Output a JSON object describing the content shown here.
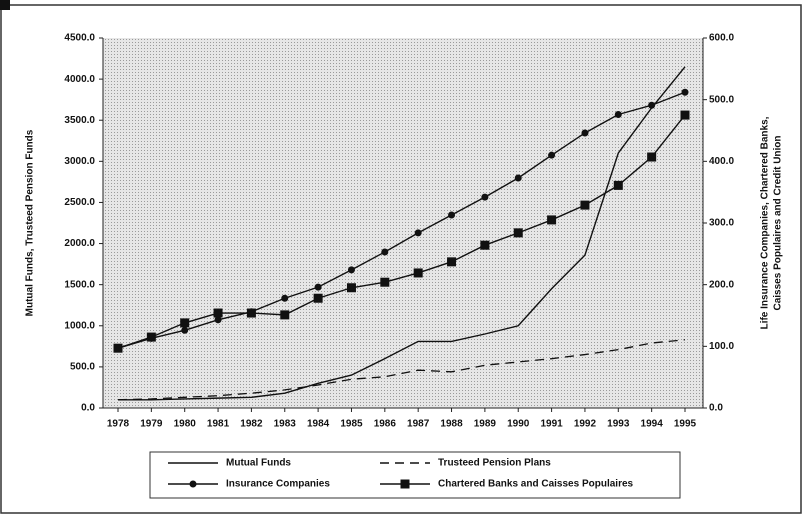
{
  "chart_data": {
    "type": "line",
    "y_axis_label": "Mutual Funds, Trusteed Pension Funds",
    "y2_axis_label": [
      "Life Insurance Companies, Chartered Banks,",
      "Caisses Populaires and Credit Union"
    ],
    "categories": [
      "1978",
      "1979",
      "1980",
      "1981",
      "1982",
      "1983",
      "1984",
      "1985",
      "1986",
      "1987",
      "1988",
      "1989",
      "1990",
      "1991",
      "1992",
      "1993",
      "1994",
      "1995"
    ],
    "ylim": [
      0,
      4500
    ],
    "yticks": [
      {
        "value": 0,
        "label": "0.0"
      },
      {
        "value": 500,
        "label": "500.0"
      },
      {
        "value": 1000,
        "label": "1000.0"
      },
      {
        "value": 1500,
        "label": "1500.0"
      },
      {
        "value": 2000,
        "label": "2000.0"
      },
      {
        "value": 2500,
        "label": "2500.0"
      },
      {
        "value": 3000,
        "label": "3000.0"
      },
      {
        "value": 3500,
        "label": "3500.0"
      },
      {
        "value": 4000,
        "label": "4000.0"
      },
      {
        "value": 4500,
        "label": "4500.0"
      }
    ],
    "y2lim": [
      0,
      600
    ],
    "y2ticks": [
      {
        "value": 0,
        "label": "0.0"
      },
      {
        "value": 100,
        "label": "100.0"
      },
      {
        "value": 200,
        "label": "200.0"
      },
      {
        "value": 300,
        "label": "300.0"
      },
      {
        "value": 400,
        "label": "400.0"
      },
      {
        "value": 500,
        "label": "500.0"
      },
      {
        "value": 600,
        "label": "600.0"
      }
    ],
    "grid": false,
    "legend": "bottom",
    "series": [
      {
        "name": "Mutual Funds",
        "color": "#111111",
        "dash": "solid",
        "marker": "none",
        "values": [
          100,
          100,
          110,
          120,
          130,
          180,
          300,
          400,
          600,
          810,
          810,
          900,
          1000,
          1450,
          1860,
          3100,
          3650,
          4150
        ]
      },
      {
        "name": "Trusteed Pension Plans",
        "color": "#111111",
        "dash": "dashed",
        "marker": "none",
        "values": [
          100,
          110,
          130,
          150,
          180,
          220,
          280,
          350,
          380,
          460,
          440,
          520,
          560,
          600,
          650,
          710,
          790,
          830
        ]
      },
      {
        "name": "Insurance Companies",
        "color": "#111111",
        "dash": "solid",
        "marker": "circle",
        "axis": "y2",
        "values": [
          97,
          113,
          126,
          143,
          156,
          178,
          196,
          224,
          253,
          284,
          313,
          342,
          373,
          410,
          446,
          476,
          491,
          512
        ]
      },
      {
        "name": "Chartered Banks and Caisses Populaires",
        "color": "#111111",
        "dash": "solid",
        "marker": "square",
        "axis": "y2",
        "values": [
          97,
          115,
          138,
          154,
          154,
          151,
          178,
          195,
          204,
          219,
          237,
          264,
          284,
          305,
          329,
          361,
          407,
          475
        ]
      }
    ]
  }
}
